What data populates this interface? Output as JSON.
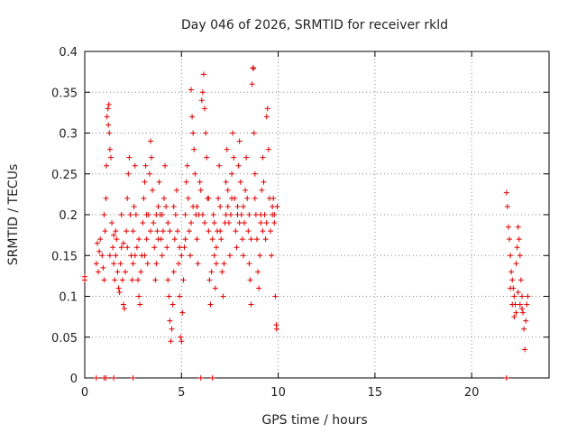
{
  "chart_data": {
    "type": "scatter",
    "title": "Day 046 of 2026, SRMTID for receiver rkld",
    "xlabel": "GPS time / hours",
    "ylabel": "SRMTID / TECUs",
    "xlim": [
      0,
      24
    ],
    "ylim": [
      0,
      0.4
    ],
    "xticks": [
      0,
      5,
      10,
      15,
      20
    ],
    "yticks": [
      0,
      0.05,
      0.1,
      0.15,
      0.2,
      0.25,
      0.3,
      0.35,
      0.4
    ],
    "xtick_labels": [
      "0",
      "5",
      "10",
      "15",
      "20"
    ],
    "ytick_labels": [
      "0",
      "0.05",
      "0.1",
      "0.15",
      "0.2",
      "0.25",
      "0.3",
      "0.35",
      "0.4"
    ],
    "grid": true,
    "marker": "+",
    "series": [
      {
        "color": "#e00000",
        "points": [
          [
            0.0,
            0.124
          ],
          [
            0.0,
            0.12
          ],
          [
            0.6,
            0.14
          ],
          [
            0.65,
            0.165
          ],
          [
            0.7,
            0.13
          ],
          [
            0.75,
            0.155
          ],
          [
            0.8,
            0.17
          ],
          [
            0.9,
            0.15
          ],
          [
            0.95,
            0.135
          ],
          [
            1.0,
            0.12
          ],
          [
            1.05,
            0.18
          ],
          [
            1.1,
            0.22
          ],
          [
            1.12,
            0.26
          ],
          [
            1.15,
            0.32
          ],
          [
            1.2,
            0.33
          ],
          [
            1.22,
            0.31
          ],
          [
            1.25,
            0.335
          ],
          [
            1.27,
            0.3
          ],
          [
            1.3,
            0.28
          ],
          [
            1.35,
            0.27
          ],
          [
            1.4,
            0.19
          ],
          [
            1.45,
            0.16
          ],
          [
            1.5,
            0.14
          ],
          [
            1.55,
            0.12
          ],
          [
            1.6,
            0.15
          ],
          [
            1.65,
            0.17
          ],
          [
            1.7,
            0.13
          ],
          [
            1.75,
            0.11
          ],
          [
            1.8,
            0.105
          ],
          [
            1.85,
            0.14
          ],
          [
            1.9,
            0.16
          ],
          [
            1.95,
            0.12
          ],
          [
            2.0,
            0.09
          ],
          [
            2.05,
            0.085
          ],
          [
            2.1,
            0.13
          ],
          [
            2.15,
            0.18
          ],
          [
            2.2,
            0.22
          ],
          [
            2.25,
            0.25
          ],
          [
            2.3,
            0.27
          ],
          [
            2.35,
            0.2
          ],
          [
            2.4,
            0.15
          ],
          [
            2.45,
            0.12
          ],
          [
            2.5,
            0.14
          ],
          [
            2.55,
            0.21
          ],
          [
            2.6,
            0.26
          ],
          [
            2.65,
            0.2
          ],
          [
            2.7,
            0.16
          ],
          [
            2.75,
            0.12
          ],
          [
            2.8,
            0.1
          ],
          [
            2.85,
            0.09
          ],
          [
            2.9,
            0.13
          ],
          [
            2.95,
            0.15
          ],
          [
            3.0,
            0.19
          ],
          [
            3.05,
            0.22
          ],
          [
            3.1,
            0.24
          ],
          [
            3.15,
            0.26
          ],
          [
            3.2,
            0.17
          ],
          [
            3.25,
            0.14
          ],
          [
            3.3,
            0.2
          ],
          [
            3.35,
            0.25
          ],
          [
            3.4,
            0.29
          ],
          [
            3.45,
            0.27
          ],
          [
            3.5,
            0.23
          ],
          [
            3.55,
            0.19
          ],
          [
            3.6,
            0.16
          ],
          [
            3.65,
            0.12
          ],
          [
            3.7,
            0.14
          ],
          [
            3.75,
            0.18
          ],
          [
            3.8,
            0.21
          ],
          [
            3.85,
            0.24
          ],
          [
            3.9,
            0.2
          ],
          [
            3.95,
            0.17
          ],
          [
            4.0,
            0.15
          ],
          [
            4.05,
            0.18
          ],
          [
            4.1,
            0.22
          ],
          [
            4.15,
            0.26
          ],
          [
            4.2,
            0.21
          ],
          [
            4.25,
            0.16
          ],
          [
            4.3,
            0.12
          ],
          [
            4.35,
            0.1
          ],
          [
            4.4,
            0.07
          ],
          [
            4.45,
            0.045
          ],
          [
            4.5,
            0.06
          ],
          [
            4.55,
            0.09
          ],
          [
            4.6,
            0.13
          ],
          [
            4.65,
            0.17
          ],
          [
            4.7,
            0.2
          ],
          [
            4.75,
            0.23
          ],
          [
            4.8,
            0.18
          ],
          [
            4.85,
            0.14
          ],
          [
            4.9,
            0.1
          ],
          [
            4.95,
            0.05
          ],
          [
            5.0,
            0.045
          ],
          [
            5.05,
            0.08
          ],
          [
            5.1,
            0.12
          ],
          [
            5.15,
            0.16
          ],
          [
            5.2,
            0.2
          ],
          [
            5.25,
            0.24
          ],
          [
            5.3,
            0.26
          ],
          [
            5.35,
            0.22
          ],
          [
            5.4,
            0.18
          ],
          [
            5.45,
            0.15
          ],
          [
            5.5,
            0.353
          ],
          [
            5.55,
            0.32
          ],
          [
            5.6,
            0.3
          ],
          [
            5.65,
            0.28
          ],
          [
            5.7,
            0.25
          ],
          [
            5.75,
            0.2
          ],
          [
            5.8,
            0.17
          ],
          [
            5.85,
            0.14
          ],
          [
            5.9,
            0.2
          ],
          [
            5.95,
            0.24
          ],
          [
            6.0,
            0.23
          ],
          [
            6.05,
            0.34
          ],
          [
            6.1,
            0.35
          ],
          [
            6.15,
            0.372
          ],
          [
            6.2,
            0.33
          ],
          [
            6.25,
            0.3
          ],
          [
            6.3,
            0.27
          ],
          [
            6.35,
            0.22
          ],
          [
            6.4,
            0.18
          ],
          [
            6.45,
            0.12
          ],
          [
            6.5,
            0.09
          ],
          [
            6.55,
            0.13
          ],
          [
            6.6,
            0.17
          ],
          [
            6.65,
            0.2
          ],
          [
            6.7,
            0.15
          ],
          [
            6.75,
            0.11
          ],
          [
            6.8,
            0.14
          ],
          [
            6.85,
            0.18
          ],
          [
            6.9,
            0.22
          ],
          [
            6.95,
            0.26
          ],
          [
            7.0,
            0.21
          ],
          [
            7.05,
            0.17
          ],
          [
            7.1,
            0.13
          ],
          [
            7.15,
            0.1
          ],
          [
            7.2,
            0.14
          ],
          [
            7.25,
            0.19
          ],
          [
            7.3,
            0.24
          ],
          [
            7.35,
            0.28
          ],
          [
            7.4,
            0.23
          ],
          [
            7.45,
            0.19
          ],
          [
            7.5,
            0.15
          ],
          [
            7.55,
            0.2
          ],
          [
            7.6,
            0.25
          ],
          [
            7.65,
            0.3
          ],
          [
            7.7,
            0.27
          ],
          [
            7.75,
            0.22
          ],
          [
            7.8,
            0.18
          ],
          [
            7.85,
            0.16
          ],
          [
            7.9,
            0.21
          ],
          [
            7.95,
            0.26
          ],
          [
            8.0,
            0.29
          ],
          [
            8.05,
            0.24
          ],
          [
            8.1,
            0.2
          ],
          [
            8.15,
            0.17
          ],
          [
            8.2,
            0.15
          ],
          [
            8.25,
            0.19
          ],
          [
            8.3,
            0.23
          ],
          [
            8.35,
            0.27
          ],
          [
            8.4,
            0.22
          ],
          [
            8.45,
            0.18
          ],
          [
            8.5,
            0.14
          ],
          [
            8.55,
            0.12
          ],
          [
            8.6,
            0.09
          ],
          [
            8.65,
            0.36
          ],
          [
            8.7,
            0.38
          ],
          [
            8.72,
            0.379
          ],
          [
            8.75,
            0.3
          ],
          [
            8.8,
            0.25
          ],
          [
            8.85,
            0.2
          ],
          [
            8.9,
            0.17
          ],
          [
            8.95,
            0.13
          ],
          [
            9.0,
            0.11
          ],
          [
            9.05,
            0.15
          ],
          [
            9.1,
            0.19
          ],
          [
            9.15,
            0.23
          ],
          [
            9.2,
            0.27
          ],
          [
            9.25,
            0.24
          ],
          [
            9.3,
            0.2
          ],
          [
            9.35,
            0.17
          ],
          [
            9.4,
            0.32
          ],
          [
            9.45,
            0.33
          ],
          [
            9.5,
            0.28
          ],
          [
            9.55,
            0.22
          ],
          [
            9.6,
            0.18
          ],
          [
            9.65,
            0.15
          ],
          [
            9.7,
            0.2
          ],
          [
            9.75,
            0.22
          ],
          [
            9.8,
            0.19
          ],
          [
            9.85,
            0.1
          ],
          [
            9.9,
            0.065
          ],
          [
            9.92,
            0.06
          ],
          [
            9.95,
            0.21
          ],
          [
            1.0,
            0.2
          ],
          [
            1.3,
            0.15
          ],
          [
            1.6,
            0.18
          ],
          [
            1.9,
            0.2
          ],
          [
            2.2,
            0.16
          ],
          [
            2.5,
            0.18
          ],
          [
            2.8,
            0.17
          ],
          [
            3.1,
            0.15
          ],
          [
            3.4,
            0.18
          ],
          [
            3.7,
            0.2
          ],
          [
            4.0,
            0.2
          ],
          [
            4.3,
            0.19
          ],
          [
            4.6,
            0.21
          ],
          [
            4.9,
            0.16
          ],
          [
            5.2,
            0.17
          ],
          [
            5.5,
            0.19
          ],
          [
            5.8,
            0.21
          ],
          [
            6.1,
            0.2
          ],
          [
            6.4,
            0.22
          ],
          [
            6.7,
            0.19
          ],
          [
            7.0,
            0.18
          ],
          [
            7.3,
            0.2
          ],
          [
            7.6,
            0.22
          ],
          [
            7.9,
            0.2
          ],
          [
            8.2,
            0.21
          ],
          [
            8.5,
            0.2
          ],
          [
            8.8,
            0.22
          ],
          [
            9.1,
            0.2
          ],
          [
            9.4,
            0.19
          ],
          [
            9.7,
            0.21
          ],
          [
            1.5,
            0.175
          ],
          [
            2.0,
            0.165
          ],
          [
            2.6,
            0.15
          ],
          [
            3.2,
            0.2
          ],
          [
            3.8,
            0.17
          ],
          [
            4.4,
            0.18
          ],
          [
            5.0,
            0.15
          ],
          [
            5.6,
            0.21
          ],
          [
            6.2,
            0.19
          ],
          [
            6.8,
            0.16
          ],
          [
            7.4,
            0.21
          ],
          [
            8.0,
            0.19
          ],
          [
            8.6,
            0.17
          ],
          [
            9.2,
            0.18
          ],
          [
            9.8,
            0.2
          ],
          [
            21.8,
            0.227
          ],
          [
            21.85,
            0.21
          ],
          [
            21.9,
            0.185
          ],
          [
            21.95,
            0.17
          ],
          [
            22.0,
            0.15
          ],
          [
            22.05,
            0.13
          ],
          [
            22.1,
            0.12
          ],
          [
            22.15,
            0.11
          ],
          [
            22.2,
            0.1
          ],
          [
            22.25,
            0.09
          ],
          [
            22.3,
            0.14
          ],
          [
            22.35,
            0.16
          ],
          [
            22.4,
            0.185
          ],
          [
            22.45,
            0.17
          ],
          [
            22.5,
            0.15
          ],
          [
            22.55,
            0.12
          ],
          [
            22.6,
            0.1
          ],
          [
            22.65,
            0.08
          ],
          [
            22.7,
            0.06
          ],
          [
            22.75,
            0.035
          ],
          [
            22.8,
            0.07
          ],
          [
            22.85,
            0.09
          ],
          [
            22.9,
            0.1
          ],
          [
            22.0,
            0.11
          ],
          [
            22.1,
            0.09
          ],
          [
            22.2,
            0.075
          ],
          [
            22.3,
            0.08
          ],
          [
            22.4,
            0.105
          ],
          [
            22.5,
            0.09
          ],
          [
            22.6,
            0.085
          ],
          [
            0.6,
            0.0
          ],
          [
            1.0,
            0.0
          ],
          [
            1.1,
            0.0
          ],
          [
            1.5,
            0.0
          ],
          [
            2.5,
            0.0
          ],
          [
            6.0,
            0.0
          ],
          [
            6.6,
            0.0
          ],
          [
            21.8,
            0.0
          ]
        ]
      }
    ]
  }
}
